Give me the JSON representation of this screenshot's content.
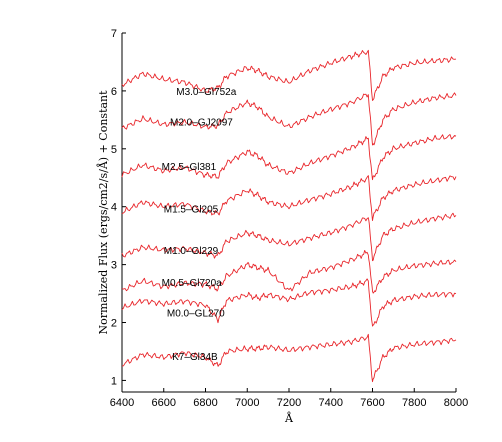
{
  "chart_data": {
    "type": "line",
    "title": "",
    "xlabel": "Å",
    "ylabel": "Normalized Flux (ergs/cm2/s/Å) + Constant",
    "xlim": [
      6400,
      8000
    ],
    "ylim": [
      0.8,
      7
    ],
    "xticks": [
      6400,
      6600,
      6800,
      7000,
      7200,
      7400,
      7600,
      7800,
      8000
    ],
    "yticks": [
      1,
      2,
      3,
      4,
      5,
      6,
      7
    ],
    "grid": false,
    "legend": "none",
    "line_color": "#e8262b",
    "x": [
      6400,
      6500,
      6600,
      6700,
      6800,
      6860,
      6900,
      7000,
      7050,
      7100,
      7200,
      7300,
      7400,
      7500,
      7580,
      7600,
      7650,
      7700,
      7800,
      7900,
      8000
    ],
    "series": [
      {
        "name": "K7–Gl34B",
        "values": [
          1.27,
          1.45,
          1.4,
          1.48,
          1.4,
          1.25,
          1.5,
          1.55,
          1.55,
          1.58,
          1.52,
          1.58,
          1.62,
          1.67,
          1.75,
          1.0,
          1.4,
          1.56,
          1.62,
          1.66,
          1.7
        ],
        "label_x": 6640,
        "label_y": 1.35
      },
      {
        "name": "M0.0–GL270",
        "values": [
          2.25,
          2.38,
          2.32,
          2.37,
          2.3,
          2.05,
          2.38,
          2.48,
          2.42,
          2.48,
          2.4,
          2.52,
          2.56,
          2.62,
          2.72,
          1.9,
          2.28,
          2.38,
          2.45,
          2.48,
          2.5
        ],
        "label_x": 6615,
        "label_y": 2.1
      },
      {
        "name": "M0.5–Gl720a",
        "values": [
          2.55,
          2.72,
          2.62,
          2.68,
          2.66,
          2.58,
          2.8,
          3.0,
          2.95,
          2.9,
          2.55,
          2.86,
          2.95,
          3.08,
          3.22,
          2.5,
          2.78,
          2.9,
          2.98,
          3.02,
          3.05
        ],
        "label_x": 6590,
        "label_y": 2.63
      },
      {
        "name": "M1.0–Gl229",
        "values": [
          3.15,
          3.3,
          3.25,
          3.28,
          3.2,
          3.15,
          3.4,
          3.55,
          3.5,
          3.42,
          3.35,
          3.46,
          3.55,
          3.68,
          3.82,
          3.1,
          3.5,
          3.62,
          3.72,
          3.8,
          3.85
        ],
        "label_x": 6600,
        "label_y": 3.18
      },
      {
        "name": "M1.5–Gl205",
        "values": [
          3.9,
          4.08,
          4.0,
          4.05,
          3.92,
          3.88,
          4.1,
          4.28,
          4.2,
          4.08,
          4.0,
          4.12,
          4.22,
          4.35,
          4.5,
          3.8,
          4.15,
          4.28,
          4.38,
          4.45,
          4.52
        ],
        "label_x": 6600,
        "label_y": 3.9
      },
      {
        "name": "M2.5–Gl381",
        "values": [
          4.55,
          4.72,
          4.62,
          4.68,
          4.55,
          4.52,
          4.75,
          4.95,
          4.88,
          4.72,
          4.58,
          4.75,
          4.88,
          5.02,
          5.18,
          4.45,
          4.85,
          5.0,
          5.1,
          5.18,
          5.22
        ],
        "label_x": 6590,
        "label_y": 4.63
      },
      {
        "name": "M2.0–GJ2097",
        "values": [
          5.35,
          5.52,
          5.42,
          5.46,
          5.38,
          5.4,
          5.62,
          5.8,
          5.72,
          5.55,
          5.38,
          5.55,
          5.68,
          5.8,
          5.95,
          5.05,
          5.5,
          5.68,
          5.8,
          5.88,
          5.92
        ],
        "label_x": 6630,
        "label_y": 5.4
      },
      {
        "name": "M3.0–Gl752a",
        "values": [
          6.1,
          6.3,
          6.2,
          6.15,
          6.0,
          6.05,
          6.25,
          6.4,
          6.35,
          6.25,
          6.15,
          6.35,
          6.48,
          6.6,
          6.68,
          5.85,
          6.25,
          6.4,
          6.48,
          6.52,
          6.55
        ],
        "label_x": 6660,
        "label_y": 5.93
      }
    ]
  }
}
